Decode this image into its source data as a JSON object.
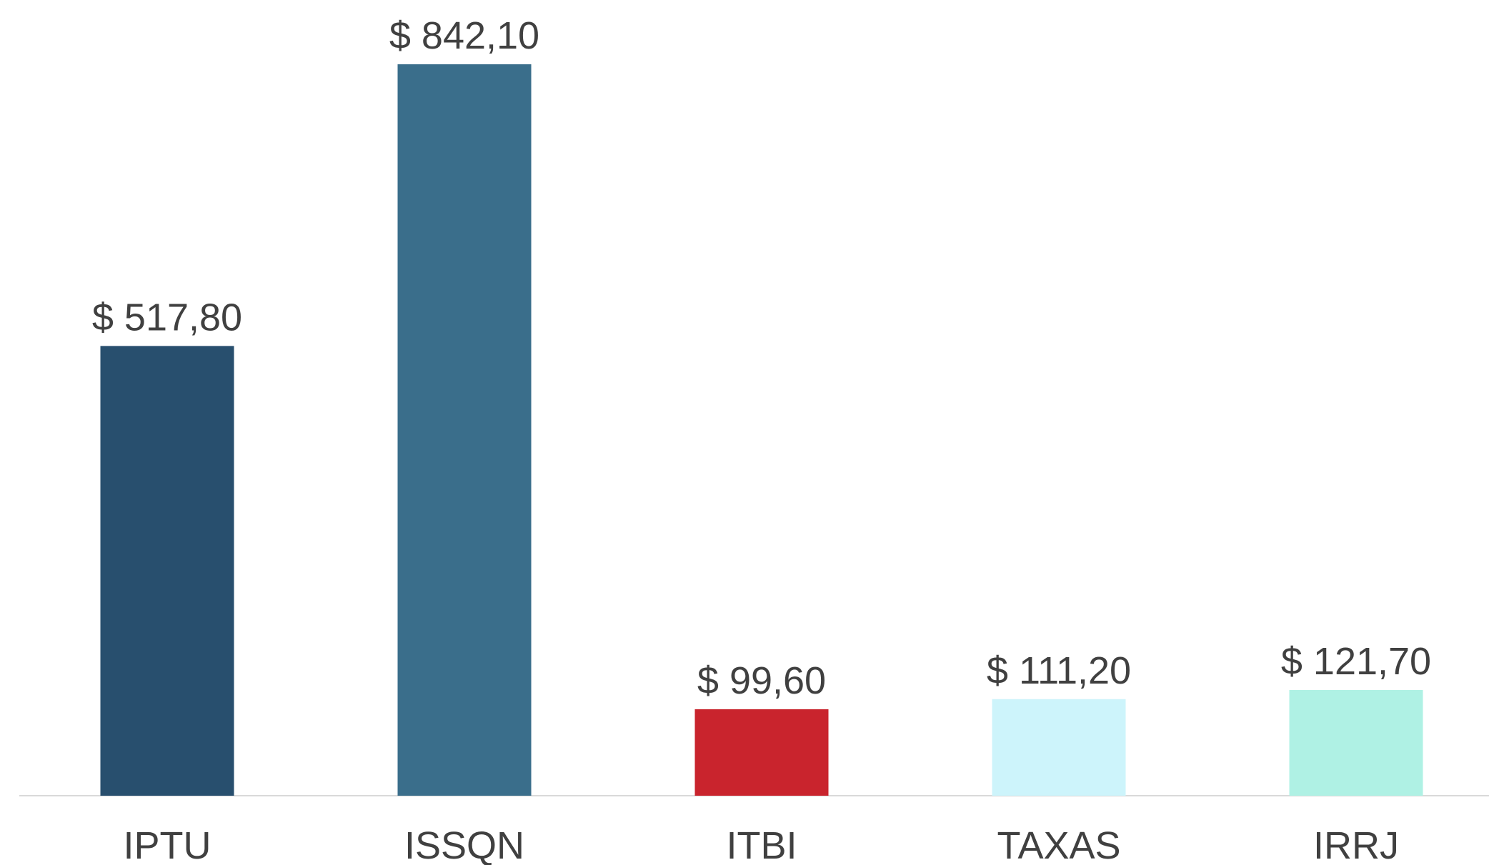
{
  "chart_data": {
    "type": "bar",
    "categories": [
      "IPTU",
      "ISSQN",
      "ITBI",
      "TAXAS",
      "IRRJ"
    ],
    "values": [
      517.8,
      842.1,
      99.6,
      111.2,
      121.7
    ],
    "value_labels": [
      "$ 517,80",
      "$ 842,10",
      "$ 99,60",
      "$ 111,20",
      "$ 121,70"
    ],
    "colors": [
      "#284f6e",
      "#3a6e8b",
      "#c9242d",
      "#cdf4fb",
      "#aff1e4"
    ]
  }
}
